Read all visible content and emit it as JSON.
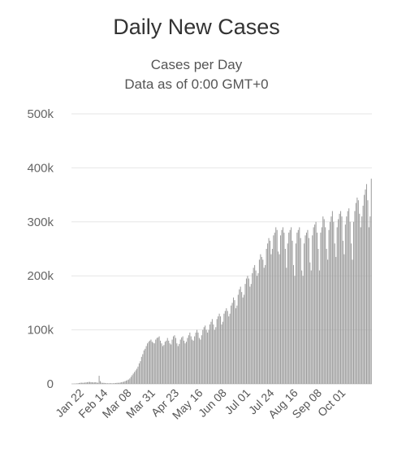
{
  "chart_data": {
    "type": "bar",
    "title": "Daily New Cases",
    "subtitle": [
      "Cases per Day",
      "Data as of 0:00 GMT+0"
    ],
    "xlabel": "",
    "ylabel": "",
    "ylim": [
      0,
      500000
    ],
    "y_ticks": [
      "0",
      "100k",
      "200k",
      "300k",
      "400k",
      "500k"
    ],
    "x_ticks": [
      "Jan 22",
      "Feb 14",
      "Mar 08",
      "Mar 31",
      "Apr 23",
      "May 16",
      "Jun 08",
      "Jul 01",
      "Jul 24",
      "Aug 16",
      "Sep 08",
      "Oct 01"
    ],
    "grid": true,
    "bar_color": "#9e9e9e",
    "series": [
      {
        "name": "Daily New Cases",
        "values": [
          100,
          200,
          300,
          500,
          800,
          1000,
          1500,
          2000,
          2200,
          2000,
          2100,
          2500,
          2600,
          3000,
          3500,
          3600,
          3100,
          3000,
          2700,
          2800,
          3000,
          2400,
          2000,
          15000,
          5000,
          2200,
          1800,
          1900,
          1600,
          1100,
          1300,
          900,
          1300,
          1200,
          1000,
          1100,
          1300,
          1600,
          1800,
          2000,
          1900,
          2500,
          3000,
          3500,
          4000,
          5000,
          6000,
          7000,
          8000,
          10000,
          13000,
          16000,
          19000,
          22000,
          25000,
          28000,
          32000,
          38000,
          42000,
          50000,
          55000,
          62000,
          65000,
          70000,
          75000,
          78000,
          80000,
          82000,
          78000,
          76000,
          75000,
          82000,
          85000,
          86000,
          88000,
          80000,
          75000,
          70000,
          72000,
          78000,
          80000,
          85000,
          80000,
          75000,
          73000,
          82000,
          88000,
          90000,
          85000,
          75000,
          70000,
          74000,
          82000,
          86000,
          88000,
          80000,
          75000,
          78000,
          85000,
          90000,
          95000,
          88000,
          82000,
          80000,
          88000,
          95000,
          100000,
          95000,
          85000,
          82000,
          90000,
          100000,
          105000,
          108000,
          100000,
          95000,
          100000,
          110000,
          115000,
          120000,
          110000,
          100000,
          105000,
          120000,
          125000,
          130000,
          125000,
          110000,
          115000,
          130000,
          135000,
          140000,
          135000,
          125000,
          130000,
          145000,
          150000,
          160000,
          155000,
          140000,
          145000,
          165000,
          175000,
          180000,
          170000,
          160000,
          165000,
          185000,
          195000,
          200000,
          195000,
          180000,
          185000,
          205000,
          215000,
          220000,
          210000,
          200000,
          205000,
          230000,
          240000,
          235000,
          230000,
          215000,
          220000,
          250000,
          260000,
          270000,
          265000,
          240000,
          250000,
          275000,
          280000,
          290000,
          285000,
          245000,
          240000,
          275000,
          285000,
          290000,
          280000,
          250000,
          215000,
          260000,
          280000,
          285000,
          290000,
          265000,
          220000,
          200000,
          260000,
          280000,
          285000,
          290000,
          270000,
          210000,
          200000,
          260000,
          275000,
          280000,
          285000,
          270000,
          225000,
          210000,
          275000,
          290000,
          295000,
          300000,
          280000,
          250000,
          210000,
          280000,
          290000,
          310000,
          305000,
          290000,
          250000,
          230000,
          285000,
          300000,
          310000,
          320000,
          300000,
          260000,
          235000,
          290000,
          305000,
          315000,
          320000,
          310000,
          265000,
          240000,
          295000,
          310000,
          320000,
          325000,
          300000,
          260000,
          230000,
          300000,
          320000,
          335000,
          345000,
          340000,
          315000,
          290000,
          310000,
          330000,
          350000,
          360000,
          370000,
          340000,
          290000,
          310000,
          380000
        ]
      }
    ]
  }
}
